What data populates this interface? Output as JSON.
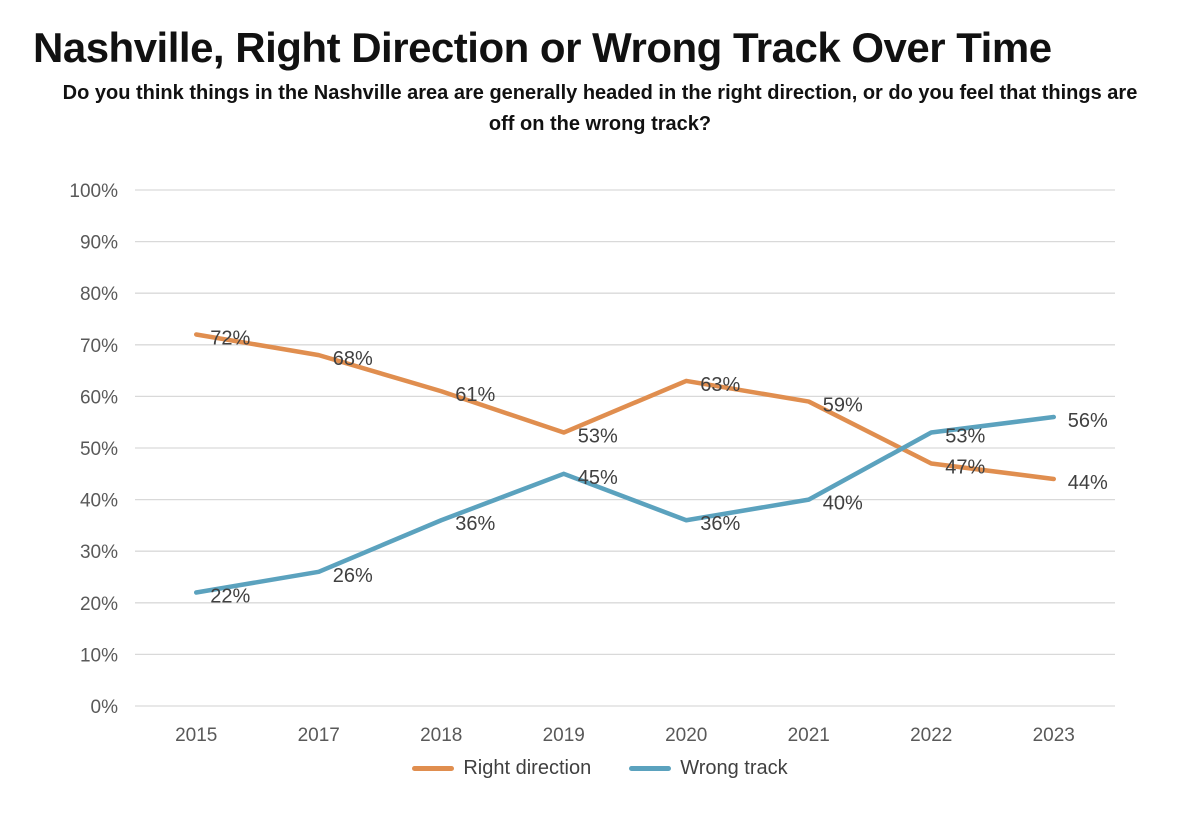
{
  "header": {
    "title": "Nashville, Right Direction or Wrong Track Over Time",
    "subtitle": "Do you think things in the Nashville area are generally headed in the right direction, or do you feel that things are off on the wrong track?"
  },
  "chart_data": {
    "type": "line",
    "categories": [
      "2015",
      "2017",
      "2018",
      "2019",
      "2020",
      "2021",
      "2022",
      "2023"
    ],
    "series": [
      {
        "name": "Right direction",
        "color": "#E08E4F",
        "values": [
          72,
          68,
          61,
          53,
          63,
          59,
          47,
          44
        ]
      },
      {
        "name": "Wrong track",
        "color": "#5BA2BE",
        "values": [
          22,
          26,
          36,
          45,
          36,
          40,
          53,
          56
        ]
      }
    ],
    "ylim": [
      0,
      100
    ],
    "y_tick_step": 10,
    "y_tick_labels": [
      "0%",
      "10%",
      "20%",
      "30%",
      "40%",
      "50%",
      "60%",
      "70%",
      "80%",
      "90%",
      "100%"
    ],
    "y_tick_suffix": "%",
    "data_label_suffix": "%",
    "grid": "horizontal",
    "legend_position": "bottom",
    "data_labels": true
  },
  "colors": {
    "grid": "#D9D9D9",
    "axis_text": "#595959",
    "data_label_text": "#404040",
    "legend_text": "#404040"
  }
}
